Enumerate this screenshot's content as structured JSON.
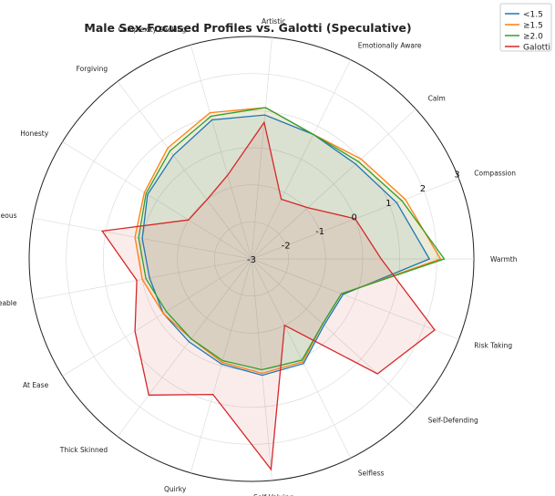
{
  "chart_data": {
    "type": "radar",
    "title": "Male Sex-Focused Profiles vs. Galotti (Speculative)",
    "axes": [
      "Warmth",
      "Compassion",
      "Calm",
      "Emotionally Aware",
      "Artistic",
      "Complexity Seeking",
      "Forgiving",
      "Honesty",
      "Spontaneous",
      "Agreeable",
      "At Ease",
      "Thick Skinned",
      "Quirky",
      "Self Valuing",
      "Selfless",
      "Self-Defending",
      "Risk Taking"
    ],
    "rlim": [
      -3,
      3
    ],
    "rticks": [
      -3,
      -2,
      -1,
      0,
      1,
      2,
      3
    ],
    "rtick_labels": [
      "-3",
      "-2",
      "-1",
      "0",
      "1",
      "2",
      "3"
    ],
    "series": [
      {
        "name": "<1.5",
        "color": "#1f77b4",
        "values": [
          1.8,
          1.2,
          0.8,
          0.75,
          0.9,
          0.9,
          0.5,
          0.3,
          0.0,
          -0.2,
          -0.2,
          -0.2,
          -0.05,
          0.15,
          0.15,
          -0.35,
          -0.35
        ]
      },
      {
        "name": "≥1.5",
        "color": "#ff7f0e",
        "values": [
          2.1,
          1.45,
          1.0,
          0.75,
          1.1,
          1.1,
          0.75,
          0.4,
          0.2,
          0.0,
          -0.2,
          -0.3,
          -0.1,
          0.1,
          0.1,
          -0.4,
          -0.4
        ]
      },
      {
        "name": "≥2.0",
        "color": "#2ca02c",
        "values": [
          2.2,
          1.35,
          0.9,
          0.75,
          1.1,
          1.0,
          0.65,
          0.35,
          0.1,
          -0.1,
          -0.3,
          -0.3,
          -0.15,
          0.0,
          0.05,
          -0.4,
          -0.4
        ]
      },
      {
        "name": "Galotti",
        "color": "#d62728",
        "values": [
          0.5,
          0.0,
          -0.95,
          -1.2,
          0.7,
          -0.65,
          -1.0,
          -1.0,
          1.1,
          0.15,
          0.7,
          1.6,
          0.8,
          2.7,
          -1.0,
          1.6,
          2.3
        ]
      }
    ],
    "legend_position": "top-right",
    "grid": true
  }
}
